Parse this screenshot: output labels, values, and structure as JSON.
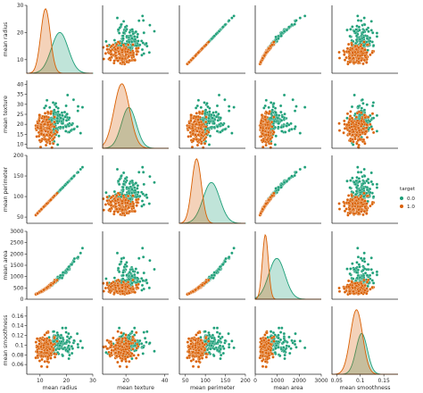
{
  "chart_data": {
    "type": "scatter",
    "subtype": "pairplot",
    "variables": [
      "mean radius",
      "mean texture",
      "mean perimeter",
      "mean area",
      "mean smoothness"
    ],
    "axis_labels": [
      "mean radius",
      "mean texture",
      "mean perimeter",
      "mean area",
      "mean smoothness"
    ],
    "ranges": [
      [
        5,
        30
      ],
      [
        8,
        42
      ],
      [
        35,
        200
      ],
      [
        0,
        3000
      ],
      [
        0.04,
        0.18
      ]
    ],
    "ticks": [
      [
        10,
        20,
        30
      ],
      [
        10,
        15,
        20,
        25,
        30,
        35,
        40
      ],
      [
        50,
        100,
        150,
        200
      ],
      [
        0,
        500,
        1000,
        1500,
        2000,
        2500,
        3000
      ],
      [
        0.06,
        0.08,
        0.1,
        0.12,
        0.14,
        0.16
      ]
    ],
    "x_ticks": [
      [
        10,
        20,
        30
      ],
      [
        20,
        40
      ],
      [
        50,
        100,
        150,
        200
      ],
      [
        0,
        1000,
        2000,
        3000
      ],
      [
        0.05,
        0.1,
        0.15
      ]
    ],
    "diagonal": "kde",
    "legend": {
      "title": "target",
      "position": "right",
      "entries": [
        "0.0",
        "1.0"
      ]
    },
    "series": [
      {
        "name": "0.0",
        "color": "#1b9e77",
        "centers": [
          17.5,
          21.5,
          115,
          980,
          0.103
        ],
        "spreads": [
          3.2,
          3.8,
          21,
          370,
          0.012
        ]
      },
      {
        "name": "1.0",
        "color": "#d95f02",
        "centers": [
          12.1,
          17.9,
          78,
          460,
          0.092
        ],
        "spreads": [
          1.8,
          4.0,
          12,
          135,
          0.013
        ]
      }
    ]
  }
}
